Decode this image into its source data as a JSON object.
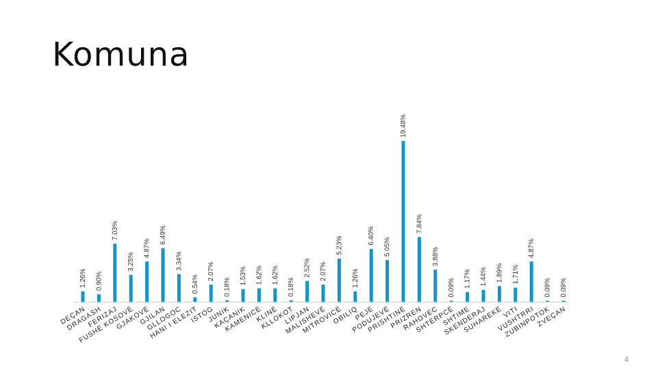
{
  "slide": {
    "title": "Komuna",
    "page_number": "4"
  },
  "chart_data": {
    "type": "bar",
    "title": "",
    "xlabel": "",
    "ylabel": "",
    "bar_color": "#0e96d1",
    "axis_color": "#cfcfcf",
    "ylim": [
      0,
      19.48
    ],
    "grid": false,
    "categories": [
      "DEÇAN",
      "DRAGASH",
      "FERIZAJ",
      "FUSHË KOSOVË",
      "GJAKOVË",
      "GJILAN",
      "GLLOGOC",
      "HANI I ELEZIT",
      "ISTOG",
      "JUNIK",
      "KAÇANIK",
      "KAMENICË",
      "KLINË",
      "KLLOKOT",
      "LIPJAN",
      "MALISHEVË",
      "MITROVICË",
      "OBILIQ",
      "PEJË",
      "PODUJEVË",
      "PRISHTINË",
      "PRIZREN",
      "RAHOVEC",
      "SHTËRPCË",
      "SHTIME",
      "SKENDERAJ",
      "SUHAREKË",
      "VITI",
      "VUSHTRRI",
      "ZUBINPOTOK",
      "ZVEÇAN"
    ],
    "values": [
      1.26,
      0.9,
      7.03,
      3.25,
      4.87,
      6.49,
      3.34,
      0.54,
      2.07,
      0.18,
      1.53,
      1.62,
      1.62,
      0.18,
      2.52,
      2.07,
      5.23,
      1.26,
      6.4,
      5.05,
      19.48,
      7.84,
      3.88,
      0.09,
      1.17,
      1.44,
      1.89,
      1.71,
      4.87,
      0.09,
      0.09
    ],
    "data_labels": [
      "1.26%",
      "0.90%",
      "7.03%",
      "3.25%",
      "4.87%",
      "6.49%",
      "3.34%",
      "0.54%",
      "2.07%",
      "0.18%",
      "1.53%",
      "1.62%",
      "1.62%",
      "0.18%",
      "2.52%",
      "2.07%",
      "5.23%",
      "1.26%",
      "6.40%",
      "5.05%",
      "19.48%",
      "7.84%",
      "3.88%",
      "0.09%",
      "1.17%",
      "1.44%",
      "1.89%",
      "1.71%",
      "4.87%",
      "0.09%",
      "0.09%"
    ]
  }
}
